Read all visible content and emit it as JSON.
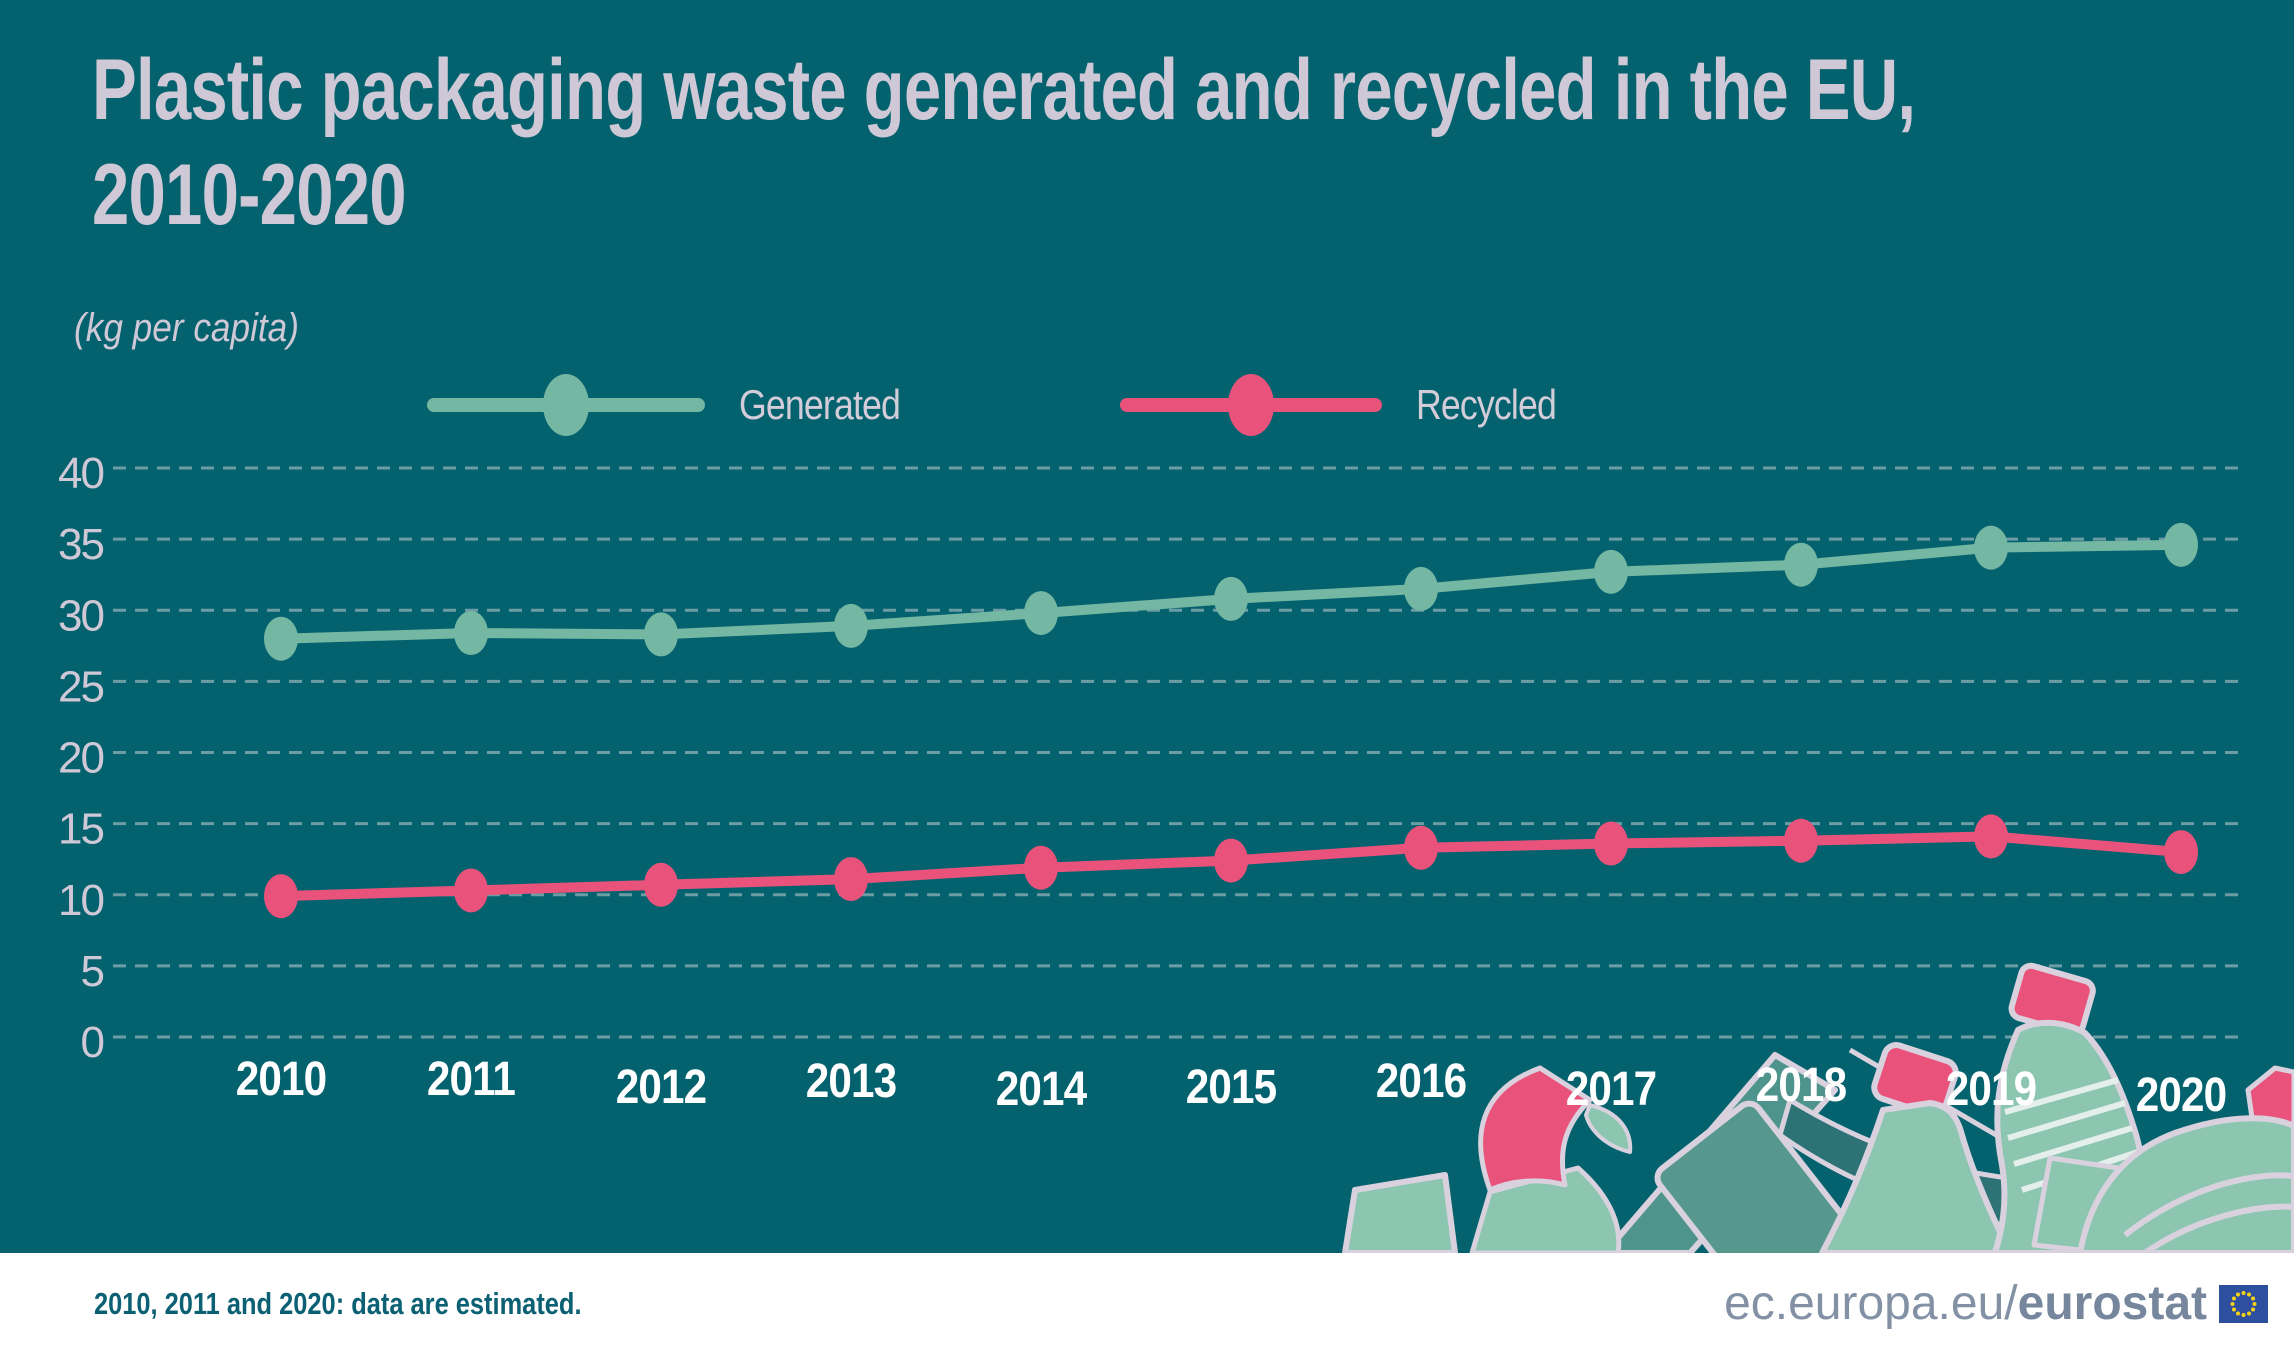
{
  "title": "Plastic packaging waste generated and recycled in the EU,\n2010-2020",
  "subtitle": "(kg per capita)",
  "colors": {
    "background": "#04616e",
    "accent_green": "#74b7a3",
    "accent_pink": "#e9537b",
    "text_light": "#cfc8d6",
    "year_label": "#ffffff",
    "grid": "#c2ced3",
    "footer_bg": "#ffffff",
    "footer_note": "#0b6173",
    "footer_site": "#8391a5",
    "eu_flag_blue": "#2e4f9e",
    "eu_flag_stars": "#f7d117"
  },
  "chart_data": {
    "type": "line",
    "title": "Plastic packaging waste generated and recycled in the EU, 2010-2020",
    "ylabel": "(kg per capita)",
    "xlabel": "",
    "x": [
      "2010",
      "2011",
      "2012",
      "2013",
      "2014",
      "2015",
      "2016",
      "2017",
      "2018",
      "2019",
      "2020"
    ],
    "series": [
      {
        "name": "Generated",
        "color": "#74b7a3",
        "values": [
          28.0,
          28.4,
          28.3,
          28.9,
          29.8,
          30.8,
          31.5,
          32.7,
          33.2,
          34.4,
          34.6
        ]
      },
      {
        "name": "Recycled",
        "color": "#e9537b",
        "values": [
          9.9,
          10.3,
          10.7,
          11.1,
          11.9,
          12.4,
          13.3,
          13.6,
          13.8,
          14.1,
          13.0
        ]
      }
    ],
    "ylim": [
      0,
      40
    ],
    "ytick_step": 5,
    "yticks": [
      0,
      5,
      10,
      15,
      20,
      25,
      30,
      35,
      40
    ],
    "grid": "horizontal dashed",
    "legend_position": "top"
  },
  "footer": {
    "note": "2010, 2011 and 2020: data are estimated.",
    "site_prefix": "ec.europa.eu/",
    "site_bold": "eurostat"
  }
}
